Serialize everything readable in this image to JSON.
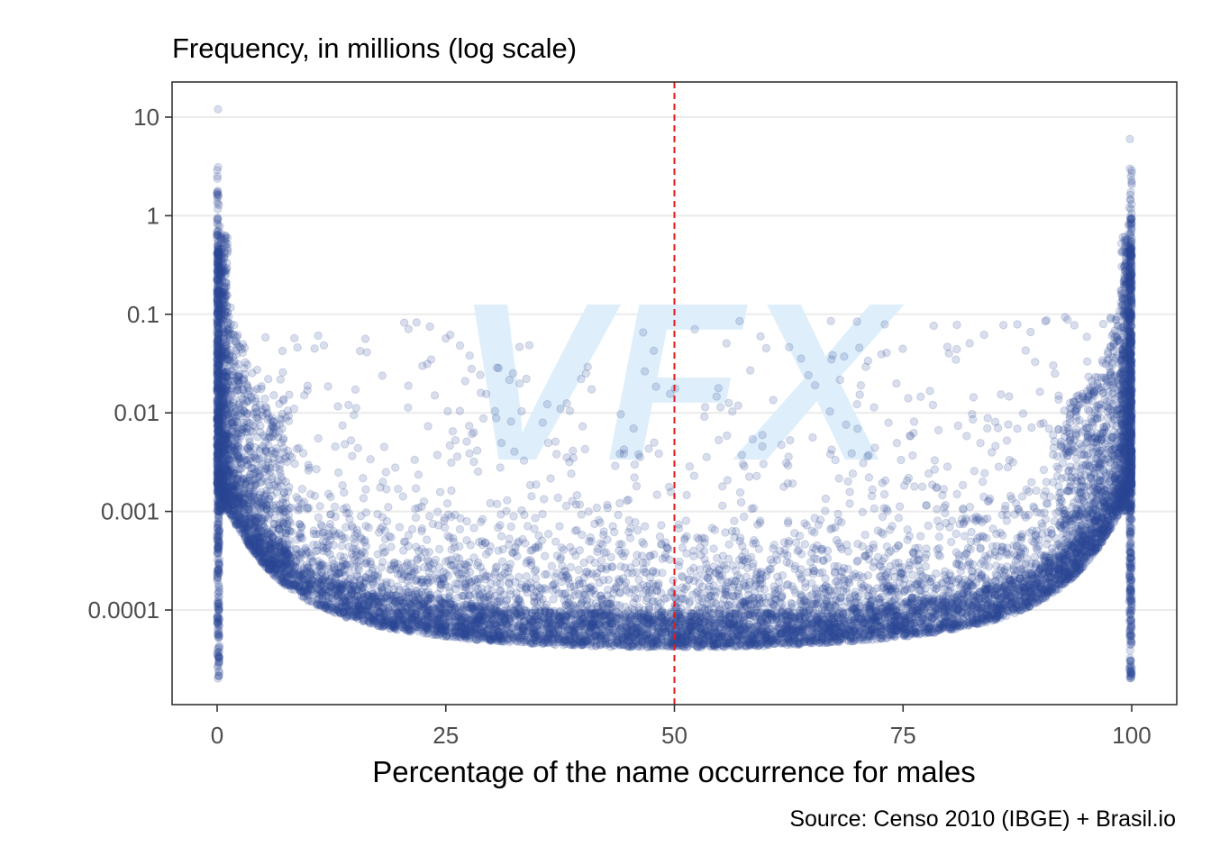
{
  "chart_data": {
    "type": "scatter",
    "title": "Frequency, in millions (log scale)",
    "xlabel": "Percentage of the name occurrence for males",
    "ylabel": "",
    "caption": "Source: Censo 2010 (IBGE) + Brasil.io",
    "watermark": "VFX",
    "x_ticks": [
      "0",
      "25",
      "50",
      "75",
      "100"
    ],
    "x_tick_values": [
      0,
      25,
      50,
      75,
      100
    ],
    "y_ticks": [
      "10",
      "1",
      "0.1",
      "0.01",
      "0.001",
      "0.0001"
    ],
    "y_tick_values": [
      10,
      1,
      0.1,
      0.01,
      0.001,
      0.0001
    ],
    "xlim": [
      -2.5,
      102.5
    ],
    "ylim": [
      1e-05,
      20
    ],
    "y_scale": "log",
    "grid": "horizontal major lines only",
    "reference_line": {
      "x": 50,
      "style": "dashed",
      "color": "#e31a1c"
    },
    "point_color": "#2e4a96",
    "point_opacity": 0.18,
    "min_frequency": 2e-05,
    "notable_points": [
      {
        "x": 0.1,
        "y": 12
      },
      {
        "x": 0.1,
        "y": 3.1
      },
      {
        "x": 99.8,
        "y": 6
      },
      {
        "x": 99.8,
        "y": 3
      },
      {
        "x": 99.9,
        "y": 2.5
      }
    ],
    "distribution_note": "U-shaped scatter: dense columns at 0% and 100%, lower frequencies toward 50%"
  },
  "colors": {
    "points": "#2e4a96",
    "reference_line": "#e31a1c",
    "grid": "#ebebeb",
    "panel_border": "#333333",
    "axis_text": "#4d4d4d",
    "watermark": "#dbeefb"
  }
}
